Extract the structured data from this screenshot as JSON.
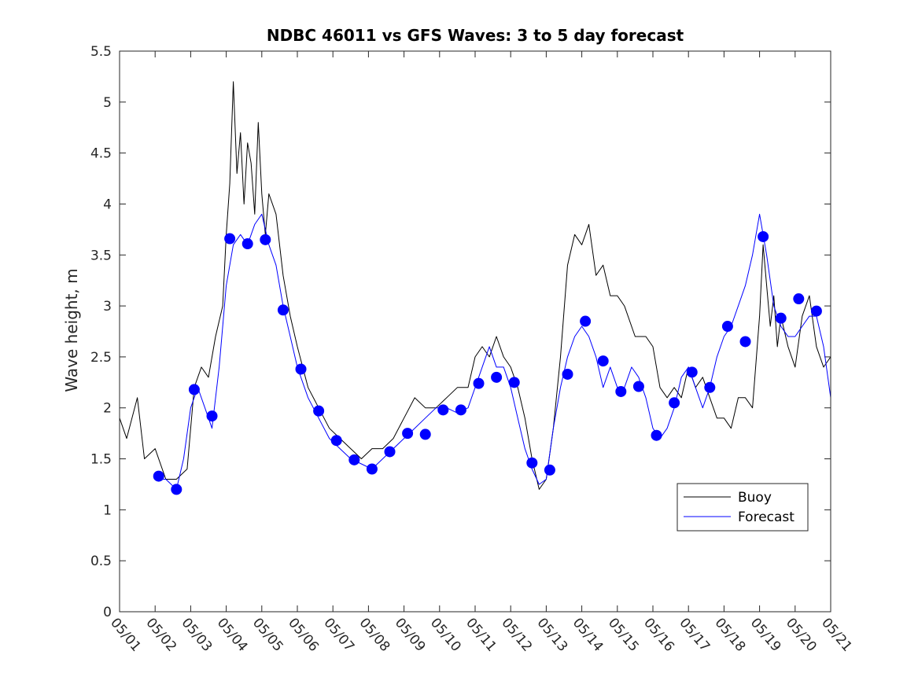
{
  "chart_data": {
    "type": "line",
    "title": "NDBC 46011 vs GFS Waves: 3 to 5 day forecast",
    "xlabel": "",
    "ylabel": "Wave height, m",
    "ylim": [
      0,
      5.5
    ],
    "xlim": [
      "05/01",
      "05/21"
    ],
    "yticks": [
      "0",
      "0.5",
      "1",
      "1.5",
      "2",
      "2.5",
      "3",
      "3.5",
      "4",
      "4.5",
      "5",
      "5.5"
    ],
    "xticks": [
      "05/01",
      "05/02",
      "05/03",
      "05/04",
      "05/05",
      "05/06",
      "05/07",
      "05/08",
      "05/09",
      "05/10",
      "05/11",
      "05/12",
      "05/13",
      "05/14",
      "05/15",
      "05/16",
      "05/17",
      "05/18",
      "05/19",
      "05/20",
      "05/21"
    ],
    "grid": false,
    "legend": {
      "placement": "bottom-right",
      "entries": [
        "Buoy",
        "Forecast"
      ]
    },
    "colors": {
      "buoy": "#000000",
      "forecast": "#0000ff",
      "marker": "#0000ff"
    },
    "series": [
      {
        "name": "Buoy",
        "x": [
          1.0,
          1.2,
          1.5,
          1.7,
          2.0,
          2.3,
          2.6,
          2.9,
          3.1,
          3.3,
          3.5,
          3.7,
          3.9,
          4.0,
          4.1,
          4.2,
          4.3,
          4.4,
          4.5,
          4.6,
          4.7,
          4.8,
          4.9,
          5.0,
          5.1,
          5.2,
          5.4,
          5.6,
          5.8,
          6.0,
          6.3,
          6.6,
          6.9,
          7.2,
          7.5,
          7.8,
          8.1,
          8.4,
          8.7,
          9.0,
          9.3,
          9.6,
          9.9,
          10.2,
          10.5,
          10.8,
          11.0,
          11.2,
          11.4,
          11.6,
          11.8,
          12.0,
          12.2,
          12.4,
          12.6,
          12.8,
          13.0,
          13.2,
          13.4,
          13.6,
          13.8,
          14.0,
          14.2,
          14.4,
          14.6,
          14.8,
          15.0,
          15.2,
          15.5,
          15.8,
          16.0,
          16.2,
          16.4,
          16.6,
          16.8,
          17.0,
          17.2,
          17.4,
          17.6,
          17.8,
          18.0,
          18.2,
          18.4,
          18.6,
          18.8,
          19.0,
          19.1,
          19.2,
          19.3,
          19.4,
          19.5,
          19.6,
          19.8,
          20.0,
          20.2,
          20.4,
          20.6,
          20.8,
          21.0
        ],
        "y": [
          1.9,
          1.7,
          2.1,
          1.5,
          1.6,
          1.3,
          1.3,
          1.4,
          2.2,
          2.4,
          2.3,
          2.7,
          3.0,
          3.7,
          4.2,
          5.2,
          4.3,
          4.7,
          4.0,
          4.6,
          4.4,
          3.9,
          4.8,
          4.1,
          3.7,
          4.1,
          3.9,
          3.3,
          2.9,
          2.6,
          2.2,
          2.0,
          1.8,
          1.7,
          1.6,
          1.5,
          1.6,
          1.6,
          1.7,
          1.9,
          2.1,
          2.0,
          2.0,
          2.1,
          2.2,
          2.2,
          2.5,
          2.6,
          2.5,
          2.7,
          2.5,
          2.4,
          2.2,
          1.9,
          1.5,
          1.2,
          1.3,
          1.8,
          2.5,
          3.4,
          3.7,
          3.6,
          3.8,
          3.3,
          3.4,
          3.1,
          3.1,
          3.0,
          2.7,
          2.7,
          2.6,
          2.2,
          2.1,
          2.2,
          2.1,
          2.4,
          2.2,
          2.3,
          2.1,
          1.9,
          1.9,
          1.8,
          2.1,
          2.1,
          2.0,
          2.9,
          3.6,
          3.2,
          2.8,
          3.1,
          2.6,
          2.9,
          2.6,
          2.4,
          2.9,
          3.1,
          2.6,
          2.4,
          2.5
        ]
      },
      {
        "name": "Forecast",
        "x": [
          2.1,
          2.3,
          2.6,
          2.8,
          3.0,
          3.2,
          3.4,
          3.6,
          3.8,
          4.0,
          4.2,
          4.4,
          4.6,
          4.8,
          5.0,
          5.2,
          5.4,
          5.6,
          5.8,
          6.0,
          6.3,
          6.6,
          6.9,
          7.2,
          7.5,
          7.8,
          8.1,
          8.4,
          8.7,
          9.0,
          9.3,
          9.6,
          9.9,
          10.2,
          10.5,
          10.8,
          11.0,
          11.2,
          11.4,
          11.6,
          11.8,
          12.0,
          12.2,
          12.4,
          12.6,
          12.8,
          13.0,
          13.2,
          13.4,
          13.6,
          13.8,
          14.0,
          14.2,
          14.4,
          14.6,
          14.8,
          15.0,
          15.2,
          15.4,
          15.6,
          15.8,
          16.0,
          16.2,
          16.4,
          16.6,
          16.8,
          17.0,
          17.2,
          17.4,
          17.6,
          17.8,
          18.0,
          18.2,
          18.4,
          18.6,
          18.8,
          19.0,
          19.2,
          19.4,
          19.6,
          19.8,
          20.0,
          20.2,
          20.4,
          20.6,
          20.8,
          21.0
        ],
        "y": [
          1.3,
          1.3,
          1.2,
          1.5,
          2.0,
          2.2,
          2.0,
          1.8,
          2.4,
          3.2,
          3.6,
          3.7,
          3.6,
          3.8,
          3.9,
          3.6,
          3.4,
          3.0,
          2.7,
          2.4,
          2.1,
          1.9,
          1.7,
          1.6,
          1.5,
          1.45,
          1.4,
          1.5,
          1.6,
          1.7,
          1.8,
          1.9,
          2.0,
          2.0,
          1.95,
          2.0,
          2.2,
          2.4,
          2.6,
          2.4,
          2.4,
          2.2,
          1.9,
          1.6,
          1.4,
          1.25,
          1.3,
          1.8,
          2.2,
          2.5,
          2.7,
          2.8,
          2.7,
          2.5,
          2.2,
          2.4,
          2.2,
          2.2,
          2.4,
          2.3,
          2.1,
          1.8,
          1.7,
          1.8,
          2.0,
          2.3,
          2.4,
          2.2,
          2.0,
          2.2,
          2.5,
          2.7,
          2.8,
          3.0,
          3.2,
          3.5,
          3.9,
          3.5,
          3.0,
          2.8,
          2.7,
          2.7,
          2.8,
          2.9,
          2.9,
          2.6,
          2.1
        ]
      }
    ],
    "forecast_markers": {
      "x": [
        2.1,
        2.6,
        3.1,
        3.6,
        4.1,
        4.6,
        5.1,
        5.6,
        6.1,
        6.6,
        7.1,
        7.6,
        8.1,
        8.6,
        9.1,
        9.6,
        10.1,
        10.6,
        11.1,
        11.6,
        12.1,
        12.6,
        13.1,
        13.6,
        14.1,
        14.6,
        15.1,
        15.6,
        16.1,
        16.6,
        17.1,
        17.6,
        18.1,
        18.6,
        19.1,
        19.6,
        20.1,
        20.6
      ],
      "y": [
        1.33,
        1.2,
        2.18,
        1.92,
        3.66,
        3.61,
        3.65,
        2.96,
        2.38,
        1.97,
        1.68,
        1.49,
        1.4,
        1.57,
        1.75,
        1.74,
        1.98,
        1.98,
        2.24,
        2.3,
        2.25,
        1.46,
        1.39,
        2.33,
        2.85,
        2.46,
        2.16,
        2.21,
        1.73,
        2.05,
        2.35,
        2.2,
        2.8,
        2.65,
        3.68,
        2.88,
        3.07,
        2.95
      ]
    }
  }
}
